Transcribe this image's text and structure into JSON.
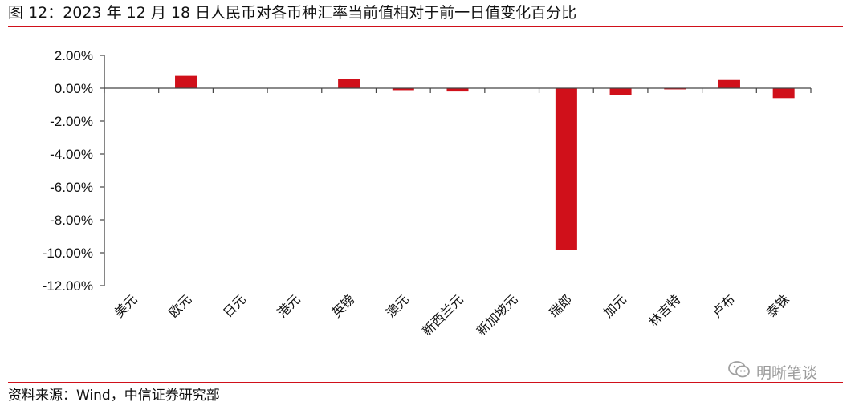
{
  "header": {
    "title": "图 12：2023 年 12 月 18 日人民币对各币种汇率当前值相对于前一日值变化百分比"
  },
  "footer": {
    "source": "资料来源：Wind，中信证券研究部",
    "watermark": "明晰笔谈",
    "watermark_icon": "wechat-icon"
  },
  "colors": {
    "bar": "#d0101a",
    "rule": "#d0101a",
    "axis": "#444444"
  },
  "chart_data": {
    "type": "bar",
    "title": "",
    "xlabel": "",
    "ylabel": "",
    "categories": [
      "美元",
      "欧元",
      "日元",
      "港元",
      "英镑",
      "澳元",
      "新西兰元",
      "新加坡元",
      "瑞郎",
      "加元",
      "林吉特",
      "卢布",
      "泰铢"
    ],
    "values": [
      0.0,
      0.75,
      0.0,
      0.0,
      0.55,
      -0.12,
      -0.2,
      0.0,
      -9.85,
      -0.42,
      -0.07,
      0.5,
      -0.6
    ],
    "ylim": [
      -12,
      2
    ],
    "yticks": [
      2,
      0,
      -2,
      -4,
      -6,
      -8,
      -10,
      -12
    ],
    "ytick_labels": [
      "2.00%",
      "0.00%",
      "-2.00%",
      "-4.00%",
      "-6.00%",
      "-8.00%",
      "-10.00%",
      "-12.00%"
    ],
    "grid": false,
    "legend": "none"
  }
}
